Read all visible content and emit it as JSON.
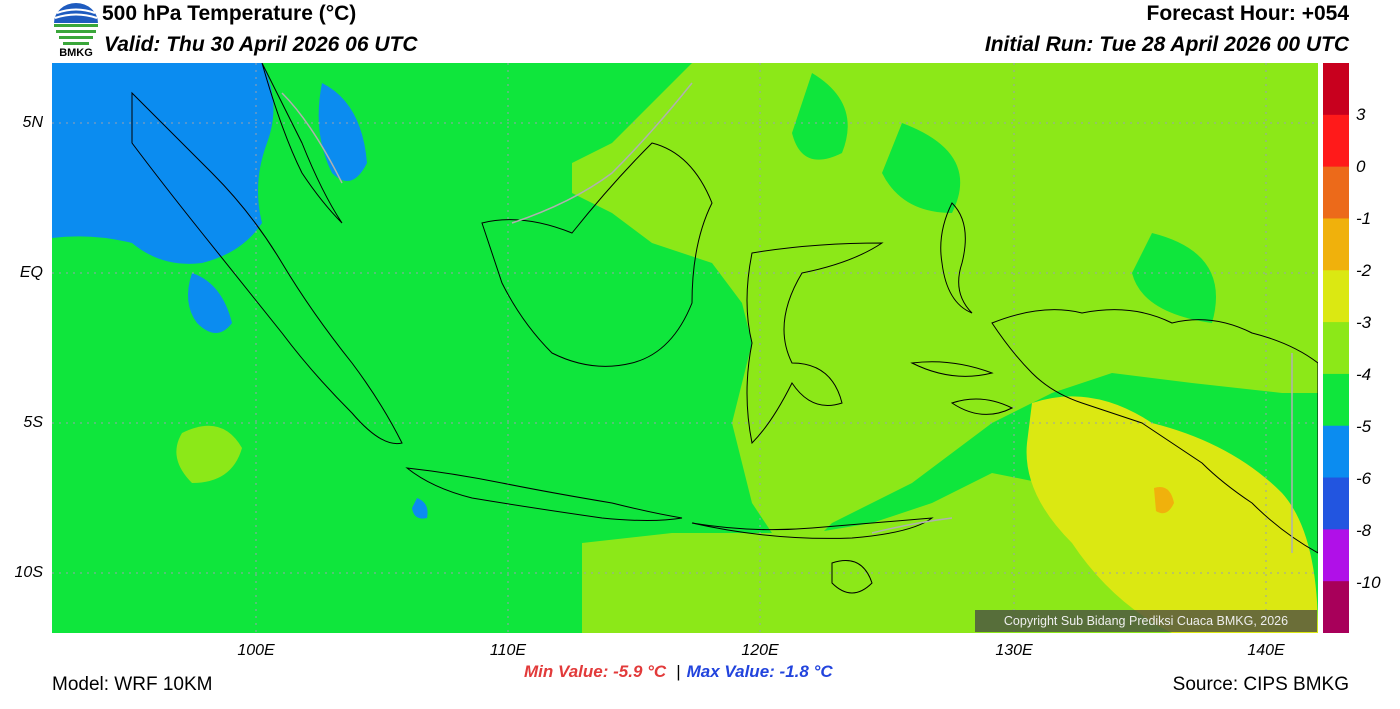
{
  "header": {
    "title": "500 hPa Temperature (°C)",
    "valid": "Valid: Thu 30 April 2026 06 UTC",
    "forecast_hour": "Forecast Hour: +054",
    "initial_run": "Initial Run: Tue 28 April 2026 00 UTC",
    "logo_text": "BMKG"
  },
  "map": {
    "lat_labels": [
      "5N",
      "EQ",
      "5S",
      "10S"
    ],
    "lon_labels": [
      "100E",
      "110E",
      "120E",
      "130E",
      "140E"
    ],
    "copyright": "Copyright Sub Bidang Prediksi Cuaca BMKG, 2026"
  },
  "colorbar": {
    "labels": [
      "3",
      "0",
      "-1",
      "-2",
      "-3",
      "-4",
      "-5",
      "-6",
      "-8",
      "-10"
    ],
    "colors": [
      "#c8001e",
      "#ff1a1a",
      "#ec6a1a",
      "#f0b10c",
      "#dbe812",
      "#8ce818",
      "#0fe63c",
      "#0b8cf0",
      "#2255e0",
      "#b010e8",
      "#a8005a"
    ]
  },
  "stats": {
    "min": "Min Value: -5.9 °C",
    "max": "Max Value: -1.8 °C"
  },
  "footer": {
    "model": "Model: WRF 10KM",
    "source": "Source: CIPS BMKG"
  }
}
